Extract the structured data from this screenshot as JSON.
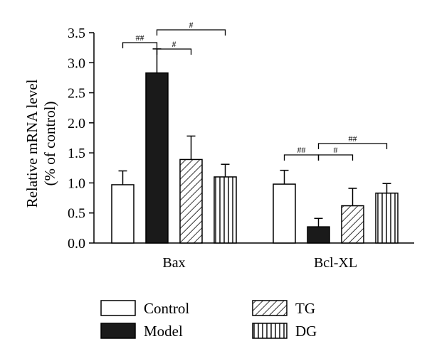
{
  "chart_data": {
    "type": "bar",
    "title": "",
    "ylabel": "Relative mRNA level",
    "ylabel_sub": "(% of control)",
    "xlabel": "",
    "ylim": [
      0,
      3.5
    ],
    "yticks": [
      "0.0",
      "0.5",
      "1.0",
      "1.5",
      "2.0",
      "2.5",
      "3.0",
      "3.5"
    ],
    "categories": [
      "Bax",
      "Bcl-XL"
    ],
    "series": [
      {
        "name": "Control",
        "pattern": "open",
        "values": [
          0.97,
          0.98
        ],
        "errors": [
          0.23,
          0.23
        ]
      },
      {
        "name": "Model",
        "pattern": "solid",
        "values": [
          2.83,
          0.27
        ],
        "errors": [
          0.4,
          0.14
        ]
      },
      {
        "name": "TG",
        "pattern": "diagonal-hatch",
        "values": [
          1.39,
          0.62
        ],
        "errors": [
          0.39,
          0.29
        ]
      },
      {
        "name": "DG",
        "pattern": "vertical-hatch",
        "values": [
          1.1,
          0.83
        ],
        "errors": [
          0.21,
          0.16
        ]
      }
    ],
    "significance": [
      {
        "category": "Bax",
        "from": "Control",
        "to": "Model",
        "label": "##"
      },
      {
        "category": "Bax",
        "from": "Model",
        "to": "TG",
        "label": "#"
      },
      {
        "category": "Bax",
        "from": "Model",
        "to": "DG",
        "label": "#"
      },
      {
        "category": "Bcl-XL",
        "from": "Control",
        "to": "Model",
        "label": "##"
      },
      {
        "category": "Bcl-XL",
        "from": "Model",
        "to": "TG",
        "label": "#"
      },
      {
        "category": "Bcl-XL",
        "from": "Model",
        "to": "DG",
        "label": "##"
      }
    ],
    "legend_position": "bottom",
    "grid": false,
    "colors": {
      "bar_fill_open": "#ffffff",
      "bar_fill_solid": "#1a1a1a",
      "stroke": "#000000"
    }
  }
}
